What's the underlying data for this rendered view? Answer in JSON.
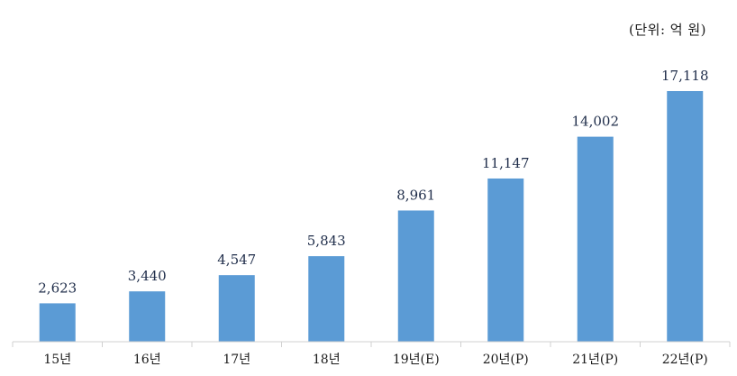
{
  "unit_label": "(단위: 억 원)",
  "chart_data": {
    "type": "bar",
    "categories": [
      "15년",
      "16년",
      "17년",
      "18년",
      "19년(E)",
      "20년(P)",
      "21년(P)",
      "22년(P)"
    ],
    "values": [
      2623,
      3440,
      4547,
      5843,
      8961,
      11147,
      14002,
      17118
    ],
    "value_labels": [
      "2,623",
      "3,440",
      "4,547",
      "5,843",
      "8,961",
      "11,147",
      "14,002",
      "17,118"
    ],
    "title": "",
    "xlabel": "",
    "ylabel": "",
    "ylim": [
      0,
      20000
    ],
    "grid": false,
    "bar_color": "#5b9bd5",
    "label_color": "#1f2d4a"
  }
}
